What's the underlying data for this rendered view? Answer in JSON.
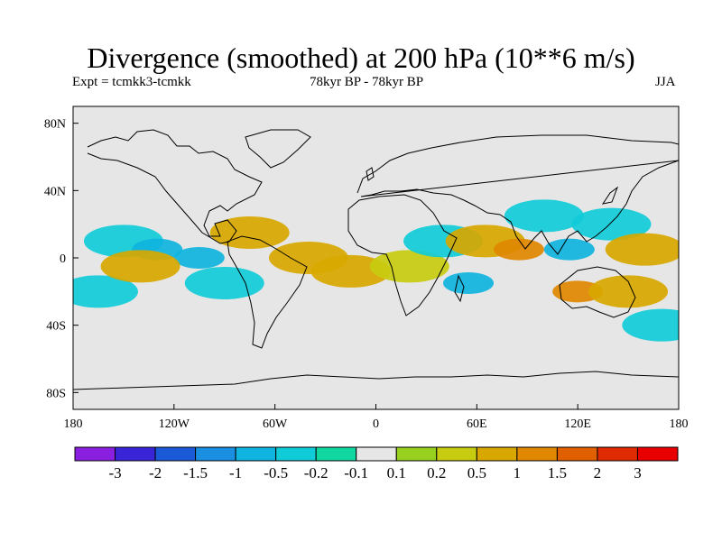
{
  "chart_data": {
    "type": "heatmap",
    "title": "Divergence (smoothed) at 200 hPa (10**6 m/s)",
    "experiment": "Expt = tcmkk3-tcmkk",
    "period": "78kyr BP - 78kyr BP",
    "season": "JJA",
    "x_ticks": [
      "180",
      "120W",
      "60W",
      "0",
      "60E",
      "120E",
      "180"
    ],
    "x_tick_values": [
      -180,
      -120,
      -60,
      0,
      60,
      120,
      180
    ],
    "y_ticks": [
      "80N",
      "40N",
      "0",
      "40S",
      "80S"
    ],
    "y_tick_values": [
      80,
      40,
      0,
      -40,
      -80
    ],
    "xlim": [
      -180,
      180
    ],
    "ylim": [
      -90,
      90
    ],
    "colorbar": {
      "labels": [
        "-3",
        "-2",
        "-1.5",
        "-1",
        "-0.5",
        "-0.2",
        "-0.1",
        "0.1",
        "0.2",
        "0.5",
        "1",
        "1.5",
        "2",
        "3"
      ],
      "levels": [
        -3,
        -2,
        -1.5,
        -1,
        -0.5,
        -0.2,
        -0.1,
        0.1,
        0.2,
        0.5,
        1,
        1.5,
        2,
        3
      ],
      "colors": [
        "#8a1fe0",
        "#3a24d8",
        "#1a5ad8",
        "#1a8ee0",
        "#10b4e0",
        "#10ccd8",
        "#10d8a0",
        "#e6e6e6",
        "#98d020",
        "#c8cc10",
        "#d8a800",
        "#e08800",
        "#e06000",
        "#e02a00",
        "#e80000"
      ]
    },
    "anomaly_fields": [
      {
        "lon": -165,
        "lat": -20,
        "value": -0.5
      },
      {
        "lon": -150,
        "lat": 10,
        "value": -0.5
      },
      {
        "lon": -130,
        "lat": 5,
        "value": -1
      },
      {
        "lon": -105,
        "lat": 0,
        "value": -1
      },
      {
        "lon": -90,
        "lat": -15,
        "value": -0.5
      },
      {
        "lon": -140,
        "lat": -5,
        "value": 0.5
      },
      {
        "lon": -75,
        "lat": 15,
        "value": 0.5
      },
      {
        "lon": -40,
        "lat": 0,
        "value": 0.5
      },
      {
        "lon": -15,
        "lat": -8,
        "value": 0.5
      },
      {
        "lon": 20,
        "lat": -5,
        "value": 0.2
      },
      {
        "lon": 40,
        "lat": 10,
        "value": -0.5
      },
      {
        "lon": 55,
        "lat": -15,
        "value": -1
      },
      {
        "lon": 65,
        "lat": 10,
        "value": 0.5
      },
      {
        "lon": 85,
        "lat": 5,
        "value": 1
      },
      {
        "lon": 100,
        "lat": 25,
        "value": -0.5
      },
      {
        "lon": 115,
        "lat": 5,
        "value": -1
      },
      {
        "lon": 140,
        "lat": 20,
        "value": -0.5
      },
      {
        "lon": 160,
        "lat": 5,
        "value": 0.5
      },
      {
        "lon": 120,
        "lat": -20,
        "value": 1
      },
      {
        "lon": 150,
        "lat": -20,
        "value": 0.5
      },
      {
        "lon": 170,
        "lat": -40,
        "value": -0.5
      }
    ]
  }
}
